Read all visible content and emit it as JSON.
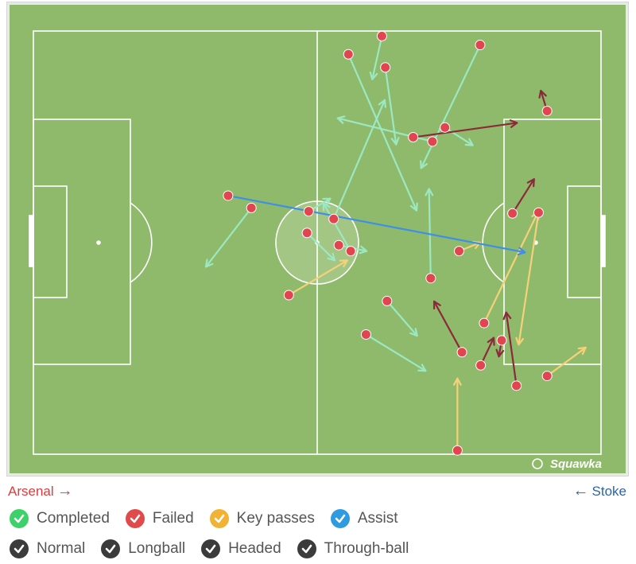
{
  "watermark": "Squawka",
  "teams": {
    "home": "Arsenal",
    "away": "Stoke"
  },
  "legend": {
    "outcomes": [
      {
        "label": "Completed",
        "color": "#3dd16a",
        "icon": "check-icon"
      },
      {
        "label": "Failed",
        "color": "#e04a4a",
        "icon": "check-icon"
      },
      {
        "label": "Key passes",
        "color": "#f2b233",
        "icon": "check-icon"
      },
      {
        "label": "Assist",
        "color": "#2e9be0",
        "icon": "check-icon"
      }
    ],
    "types": [
      {
        "label": "Normal",
        "color": "#3b3b3b",
        "icon": "check-icon"
      },
      {
        "label": "Longball",
        "color": "#3b3b3b",
        "icon": "check-icon"
      },
      {
        "label": "Headed",
        "color": "#3b3b3b",
        "icon": "check-icon"
      },
      {
        "label": "Through-ball",
        "color": "#3b3b3b",
        "icon": "check-icon"
      }
    ]
  },
  "colors": {
    "pitch": "#8fba6b",
    "lines": "#ffffff",
    "completed": "#9be8c2",
    "failed_line": "#8a2a3a",
    "key": "#f5d27a",
    "assist": "#3f8fe6",
    "dot": "#e2454f"
  },
  "chart_data": {
    "type": "scatter",
    "x_range": [
      0,
      100
    ],
    "y_range": [
      0,
      100
    ],
    "direction": "left-to-right",
    "passes": [
      {
        "from": [
          78.7,
          96.7
        ],
        "to": [
          68.3,
          67.6
        ],
        "outcome": "completed"
      },
      {
        "from": [
          52.9,
          55.6
        ],
        "to": [
          61.9,
          83.7
        ],
        "outcome": "completed"
      },
      {
        "from": [
          53.8,
          49.4
        ],
        "to": [
          58.7,
          48.0
        ],
        "outcome": "completed"
      },
      {
        "from": [
          55.9,
          48.0
        ],
        "to": [
          51.1,
          59.3
        ],
        "outcome": "completed"
      },
      {
        "from": [
          58.6,
          28.3
        ],
        "to": [
          69.1,
          19.7
        ],
        "outcome": "completed"
      },
      {
        "from": [
          70.0,
          41.6
        ],
        "to": [
          69.7,
          62.7
        ],
        "outcome": "completed"
      },
      {
        "from": [
          48.5,
          57.4
        ],
        "to": [
          52.3,
          60.4
        ],
        "outcome": "completed"
      },
      {
        "from": [
          48.2,
          52.3
        ],
        "to": [
          53.1,
          45.8
        ],
        "outcome": "completed"
      },
      {
        "from": [
          38.4,
          58.2
        ],
        "to": [
          30.4,
          44.3
        ],
        "outcome": "completed"
      },
      {
        "from": [
          62.3,
          36.2
        ],
        "to": [
          67.6,
          28.0
        ],
        "outcome": "completed"
      },
      {
        "from": [
          62.0,
          91.4
        ],
        "to": [
          63.9,
          73.2
        ],
        "outcome": "completed"
      },
      {
        "from": [
          61.4,
          98.8
        ],
        "to": [
          59.7,
          88.6
        ],
        "outcome": "completed"
      },
      {
        "from": [
          55.5,
          94.5
        ],
        "to": [
          67.5,
          57.6
        ],
        "outcome": "completed"
      },
      {
        "from": [
          70.3,
          73.9
        ],
        "to": [
          53.6,
          79.4
        ],
        "outcome": "completed"
      },
      {
        "from": [
          72.5,
          77.2
        ],
        "to": [
          77.4,
          73.0
        ],
        "outcome": "completed"
      },
      {
        "from": [
          75.5,
          24.1
        ],
        "to": [
          70.6,
          36.1
        ],
        "outcome": "failed"
      },
      {
        "from": [
          66.9,
          74.9
        ],
        "to": [
          85.2,
          78.3
        ],
        "outcome": "failed"
      },
      {
        "from": [
          85.1,
          16.2
        ],
        "to": [
          83.3,
          33.5
        ],
        "outcome": "failed"
      },
      {
        "from": [
          84.4,
          56.9
        ],
        "to": [
          88.2,
          65.0
        ],
        "outcome": "failed"
      },
      {
        "from": [
          78.8,
          21.0
        ],
        "to": [
          81.1,
          27.5
        ],
        "outcome": "failed"
      },
      {
        "from": [
          90.5,
          81.1
        ],
        "to": [
          89.4,
          85.9
        ],
        "outcome": "failed"
      },
      {
        "from": [
          82.5,
          26.9
        ],
        "to": [
          82.0,
          23.1
        ],
        "outcome": "failed"
      },
      {
        "from": [
          45.0,
          37.6
        ],
        "to": [
          55.3,
          45.8
        ],
        "outcome": "key"
      },
      {
        "from": [
          74.7,
          0.9
        ],
        "to": [
          74.7,
          17.9
        ],
        "outcome": "key"
      },
      {
        "from": [
          89.0,
          57.1
        ],
        "to": [
          85.5,
          25.9
        ],
        "outcome": "key"
      },
      {
        "from": [
          90.5,
          18.5
        ],
        "to": [
          97.3,
          25.2
        ],
        "outcome": "key"
      },
      {
        "from": [
          79.4,
          31.0
        ],
        "to": [
          88.9,
          57.2
        ],
        "outcome": "key"
      },
      {
        "from": [
          75.0,
          48.0
        ],
        "to": [
          78.7,
          50.0
        ],
        "outcome": "key"
      },
      {
        "from": [
          34.3,
          61.1
        ],
        "to": [
          86.6,
          47.7
        ],
        "outcome": "assist"
      }
    ]
  }
}
